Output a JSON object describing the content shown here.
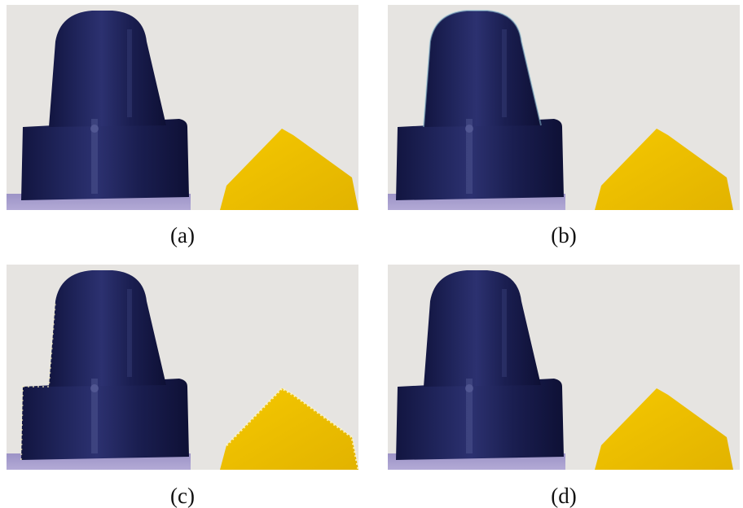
{
  "panels": [
    {
      "id": "a",
      "caption": "(a)"
    },
    {
      "id": "b",
      "caption": "(b)"
    },
    {
      "id": "c",
      "caption": "(c)"
    },
    {
      "id": "d",
      "caption": "(d)"
    }
  ],
  "colors": {
    "background": "#e6e4e1",
    "cap_dark": "#171a4a",
    "cap_highlight": "#3a3f7a",
    "sleeve": "#a89fcf",
    "crayon_yellow": "#f2c300",
    "crayon_shadow": "#d9a900"
  }
}
